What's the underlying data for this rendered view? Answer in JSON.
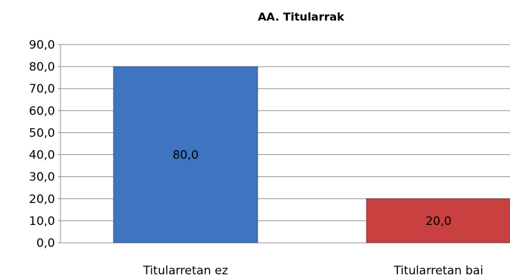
{
  "chart_data": {
    "type": "bar",
    "title": "AA. Titularrak",
    "categories": [
      "Titularretan ez",
      "Titularretan bai"
    ],
    "values": [
      80,
      20
    ],
    "value_labels": [
      "80,0",
      "20,0"
    ],
    "colors": [
      "#3f74c0",
      "#c8403f"
    ],
    "ylim": [
      0,
      90
    ],
    "yticks": [
      {
        "value": 0,
        "label": "0,0"
      },
      {
        "value": 10,
        "label": "10,0"
      },
      {
        "value": 20,
        "label": "20,0"
      },
      {
        "value": 30,
        "label": "30,0"
      },
      {
        "value": 40,
        "label": "40,0"
      },
      {
        "value": 50,
        "label": "50,0"
      },
      {
        "value": 60,
        "label": "60,0"
      },
      {
        "value": 70,
        "label": "70,0"
      },
      {
        "value": 80,
        "label": "80,0"
      },
      {
        "value": 90,
        "label": "90,0"
      }
    ],
    "grid": true
  }
}
